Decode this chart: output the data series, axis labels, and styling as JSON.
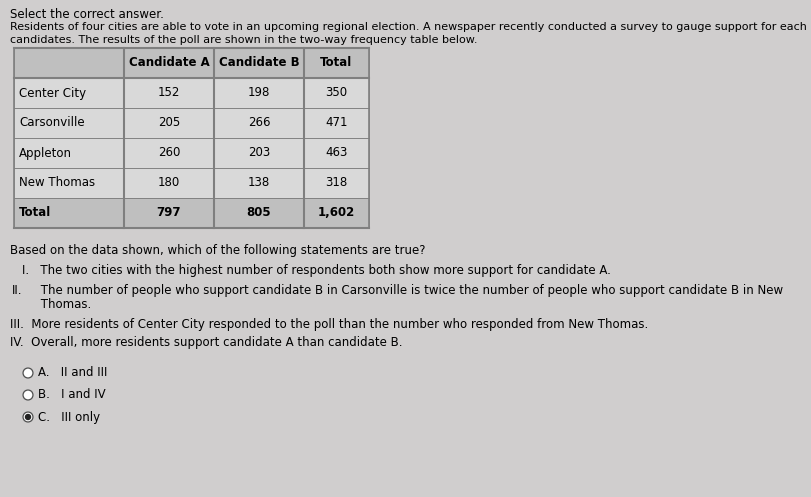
{
  "title": "Select the correct answer.",
  "intro_line1": "Residents of four cities are able to vote in an upcoming regional election. A newspaper recently conducted a survey to gauge support for each of the two",
  "intro_line2": "candidates. The results of the poll are shown in the two-way frequency table below.",
  "table_headers": [
    "",
    "Candidate A",
    "Candidate B",
    "Total"
  ],
  "table_rows": [
    [
      "Center City",
      "152",
      "198",
      "350"
    ],
    [
      "Carsonville",
      "205",
      "266",
      "471"
    ],
    [
      "Appleton",
      "260",
      "203",
      "463"
    ],
    [
      "New Thomas",
      "180",
      "138",
      "318"
    ],
    [
      "Total",
      "797",
      "805",
      "1,602"
    ]
  ],
  "question": "Based on the data shown, which of the following statements are true?",
  "stmt_I": "I.   The two cities with the highest number of respondents both show more support for candidate A.",
  "stmt_II_line1": "     The number of people who support candidate B in Carsonville is twice the number of people who support candidate B in New",
  "stmt_II_prefix": "II.",
  "stmt_II_line2": "     Thomas.",
  "stmt_III": "III.  More residents of Center City responded to the poll than the number who responded from New Thomas.",
  "stmt_IV": "IV.  Overall, more residents support candidate A than candidate B.",
  "answers": [
    [
      "A.",
      "II and III"
    ],
    [
      "B.",
      "I and IV"
    ],
    [
      "C.",
      "III only"
    ]
  ],
  "bg_color": "#d0cece",
  "table_header_bg": "#bfbfbf",
  "table_data_bg": "#d9d9d9",
  "table_border_color": "#7f7f7f",
  "selected_answer": "C"
}
